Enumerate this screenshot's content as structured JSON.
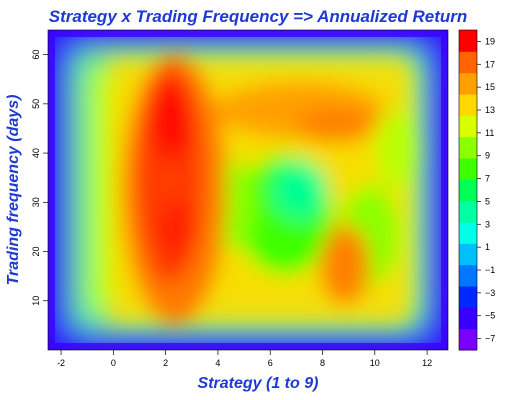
{
  "chart_data": {
    "type": "heatmap",
    "title": "Strategy x Trading Frequency => Annualized Return",
    "xlabel": "Strategy (1 to 9)",
    "ylabel": "Trading frequency (days)",
    "xlim": [
      -2.5,
      12.8
    ],
    "ylim": [
      0,
      65
    ],
    "x_ticks": [
      -2,
      0,
      2,
      4,
      6,
      8,
      10,
      12
    ],
    "y_ticks": [
      10,
      20,
      30,
      40,
      50,
      60
    ],
    "colorbar": {
      "ticks": [
        19,
        17,
        15,
        13,
        11,
        9,
        7,
        5,
        3,
        1,
        -1,
        -3,
        -5,
        -7
      ],
      "range": [
        -8,
        20
      ],
      "colors": [
        "#7a00ff",
        "#3a00ff",
        "#0028ff",
        "#0078ff",
        "#00c0ff",
        "#00ffe6",
        "#00ffa0",
        "#00ff55",
        "#3cff00",
        "#8cff00",
        "#d8ff00",
        "#ffd800",
        "#ffa000",
        "#ff6400",
        "#ff0000"
      ]
    },
    "regions": [
      {
        "name": "high-return column",
        "x": [
          1.0,
          3.5
        ],
        "y": [
          8,
          58
        ],
        "value": 19
      },
      {
        "name": "upper-right arm",
        "x": [
          5.5,
          9.5
        ],
        "y": [
          40,
          55
        ],
        "value": 14
      },
      {
        "name": "lower-right arm",
        "x": [
          8.0,
          9.5
        ],
        "y": [
          10,
          25
        ],
        "value": 15
      },
      {
        "name": "central green pocket",
        "x": [
          5.0,
          7.5
        ],
        "y": [
          15,
          30
        ],
        "value": 7
      },
      {
        "name": "outer border",
        "x": [
          -2.5,
          12.8
        ],
        "y": [
          0,
          65
        ],
        "value": -7
      }
    ]
  }
}
